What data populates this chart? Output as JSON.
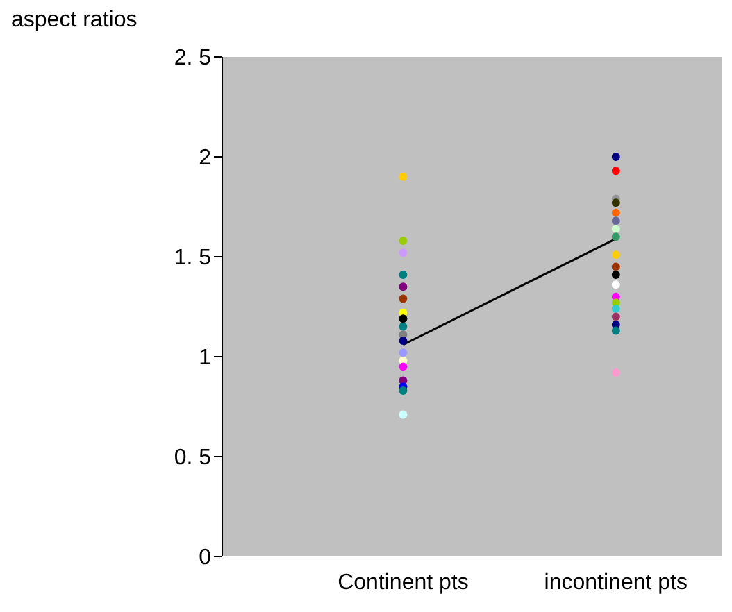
{
  "chart_data": {
    "type": "scatter",
    "ylabel": "aspect ratios",
    "categories": [
      "Continent pts",
      "incontinent pts"
    ],
    "series": [
      {
        "x": [
          "Continent pts",
          "Continent pts",
          "Continent pts",
          "Continent pts",
          "Continent pts",
          "Continent pts",
          "Continent pts",
          "Continent pts",
          "Continent pts",
          "Continent pts",
          "Continent pts",
          "Continent pts",
          "Continent pts",
          "Continent pts",
          "Continent pts",
          "Continent pts",
          "Continent pts",
          "Continent pts"
        ],
        "values": [
          1.9,
          1.58,
          1.52,
          1.41,
          1.35,
          1.29,
          1.22,
          1.19,
          1.15,
          1.11,
          1.08,
          1.02,
          0.98,
          0.95,
          0.88,
          0.85,
          0.83,
          0.71
        ],
        "colors": [
          "#ffcc00",
          "#99cc00",
          "#cc99ff",
          "#008080",
          "#800080",
          "#993300",
          "#ffff00",
          "#000000",
          "#008080",
          "#808080",
          "#000080",
          "#9999ff",
          "#ffffcc",
          "#ff00ff",
          "#800080",
          "#0000ff",
          "#008080",
          "#ccffff"
        ]
      },
      {
        "x": [
          "incontinent pts",
          "incontinent pts",
          "incontinent pts",
          "incontinent pts",
          "incontinent pts",
          "incontinent pts",
          "incontinent pts",
          "incontinent pts",
          "incontinent pts",
          "incontinent pts",
          "incontinent pts",
          "incontinent pts",
          "incontinent pts",
          "incontinent pts",
          "incontinent pts",
          "incontinent pts",
          "incontinent pts",
          "incontinent pts",
          "incontinent pts"
        ],
        "values": [
          2.0,
          1.93,
          1.79,
          1.77,
          1.72,
          1.68,
          1.64,
          1.6,
          1.51,
          1.45,
          1.41,
          1.36,
          1.3,
          1.27,
          1.24,
          1.2,
          1.16,
          1.13,
          0.92
        ],
        "colors": [
          "#000080",
          "#ff0000",
          "#969696",
          "#333300",
          "#ff6600",
          "#666699",
          "#ccffcc",
          "#339966",
          "#ffcc00",
          "#993300",
          "#000000",
          "#ffffff",
          "#ff00ff",
          "#99cc00",
          "#33cccc",
          "#993366",
          "#000080",
          "#008080",
          "#ff99cc"
        ]
      },
      {
        "type": "line",
        "x": [
          "Continent pts",
          "incontinent pts"
        ],
        "values": [
          1.06,
          1.59
        ],
        "color": "#000000",
        "marker": "none"
      }
    ],
    "ylim": [
      0,
      2.5
    ],
    "yticks": [
      0,
      {
        "value": 0.5,
        "label": "0. 5"
      },
      1,
      {
        "value": 1.5,
        "label": "1. 5"
      },
      2,
      {
        "value": 2.5,
        "label": "2. 5"
      }
    ],
    "grid": false,
    "legend": false,
    "marker": "circle"
  }
}
